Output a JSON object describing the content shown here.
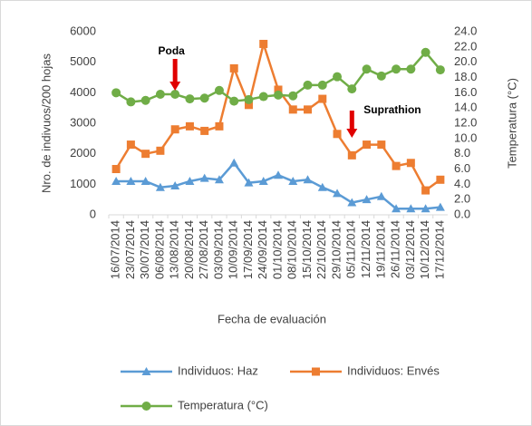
{
  "chart_data": {
    "type": "line",
    "xlabel": "Fecha de evaluación",
    "ylabel": "Nro. de indivuos/200 hojas",
    "y2label": "Temperatura (°C)",
    "categories": [
      "16/07/2014",
      "23/07/2014",
      "30/07/2014",
      "06/08/2014",
      "13/08/2014",
      "20/08/2014",
      "27/08/2014",
      "03/09/2014",
      "10/09/2014",
      "17/09/2014",
      "24/09/2014",
      "01/10/2014",
      "08/10/2014",
      "15/10/2014",
      "22/10/2014",
      "29/10/2014",
      "05/11/2014",
      "12/11/2014",
      "19/11/2014",
      "26/11/2014",
      "03/12/2014",
      "10/12/2014",
      "17/12/2014"
    ],
    "series": [
      {
        "name": "Individuos: Haz",
        "color": "#5b9bd5",
        "marker": "triangle",
        "values": [
          1100,
          1100,
          1100,
          900,
          950,
          1100,
          1200,
          1150,
          1700,
          1050,
          1100,
          1300,
          1100,
          1150,
          900,
          700,
          400,
          500,
          600,
          200,
          200,
          200,
          250
        ]
      },
      {
        "name": "Individuos: Envés",
        "color": "#ed7d31",
        "marker": "square",
        "values": [
          1500,
          2300,
          2000,
          2100,
          2800,
          2900,
          2750,
          2900,
          4800,
          3600,
          5600,
          4100,
          3450,
          3450,
          3800,
          2650,
          1950,
          2300,
          2300,
          1600,
          1700,
          800,
          1150
        ]
      },
      {
        "name": "Temperatura (°C)",
        "color": "#70ad47",
        "marker": "circle",
        "axis": "y2",
        "values": [
          16,
          14.8,
          15,
          15.8,
          15.8,
          15.2,
          15.3,
          16.3,
          14.9,
          15.1,
          15.5,
          15.7,
          15.6,
          17,
          17,
          18.1,
          16.5,
          19.1,
          18.2,
          19.1,
          19.1,
          21.3,
          19
        ]
      }
    ],
    "ylim": [
      0,
      6000
    ],
    "yticks": [
      0,
      1000,
      2000,
      3000,
      4000,
      5000,
      6000
    ],
    "y2lim": [
      0,
      24
    ],
    "y2ticks": [
      {
        "value": 0,
        "label": "0.0"
      },
      {
        "value": 2,
        "label": "2.0"
      },
      {
        "value": 4,
        "label": "4.0"
      },
      {
        "value": 6,
        "label": "6.0"
      },
      {
        "value": 8,
        "label": "8.0"
      },
      {
        "value": 10,
        "label": "10.0"
      },
      {
        "value": 12,
        "label": "12.0"
      },
      {
        "value": 14,
        "label": "14.0"
      },
      {
        "value": 16,
        "label": "16.0"
      },
      {
        "value": 18,
        "label": "18.0"
      },
      {
        "value": 20,
        "label": "20.0"
      },
      {
        "value": 22,
        "label": "22.0"
      },
      {
        "value": 24,
        "label": "24.0"
      }
    ],
    "annotations": [
      {
        "text": "Poda",
        "x": "13/08/2014"
      },
      {
        "text": "Suprathion",
        "x": "05/11/2014"
      }
    ],
    "grid": false
  }
}
